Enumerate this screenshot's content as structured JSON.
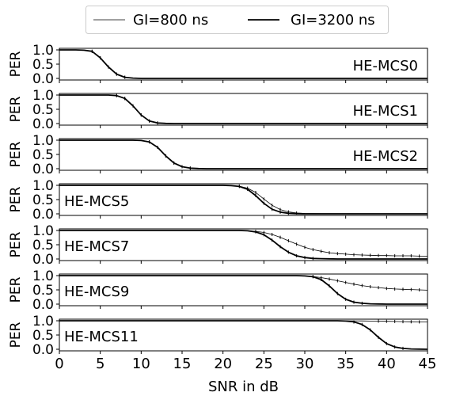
{
  "chart_data": {
    "type": "line",
    "xlabel": "SNR in dB",
    "x_ticks": [
      0,
      5,
      10,
      15,
      20,
      25,
      30,
      35,
      40,
      45
    ],
    "xlim": [
      0,
      45
    ],
    "y_ticks": [
      "1.0",
      "0.5",
      "0.0"
    ],
    "ylim": [
      0,
      1
    ],
    "legend": {
      "placement": "top-center",
      "entries": [
        {
          "label": "GI=800 ns",
          "style": "thin"
        },
        {
          "label": "GI=3200 ns",
          "style": "thick"
        }
      ]
    },
    "colors": {
      "line": "#000000",
      "axes": "#000000",
      "background": "#ffffff"
    },
    "panels": [
      {
        "label": "HE-MCS0",
        "ylabel": "PER",
        "label_position": "right",
        "series": [
          {
            "name": "GI=800 ns",
            "x": [
              0,
              2,
              3,
              4,
              5,
              6,
              7,
              8,
              9,
              10,
              45
            ],
            "y": [
              1,
              1,
              0.99,
              0.95,
              0.72,
              0.4,
              0.15,
              0.04,
              0.01,
              0,
              0
            ]
          },
          {
            "name": "GI=3200 ns",
            "x": [
              0,
              2,
              3,
              4,
              5,
              6,
              7,
              8,
              9,
              10,
              45
            ],
            "y": [
              1,
              1,
              0.99,
              0.95,
              0.72,
              0.4,
              0.15,
              0.04,
              0.01,
              0,
              0
            ]
          }
        ]
      },
      {
        "label": "HE-MCS1",
        "ylabel": "PER",
        "label_position": "right",
        "series": [
          {
            "name": "GI=800 ns",
            "x": [
              0,
              6,
              7,
              8,
              9,
              10,
              11,
              12,
              13,
              14,
              45
            ],
            "y": [
              1,
              1,
              0.98,
              0.88,
              0.62,
              0.3,
              0.09,
              0.02,
              0.005,
              0,
              0
            ]
          },
          {
            "name": "GI=3200 ns",
            "x": [
              0,
              6,
              7,
              8,
              9,
              10,
              11,
              12,
              13,
              14,
              45
            ],
            "y": [
              1,
              1,
              0.98,
              0.88,
              0.62,
              0.3,
              0.09,
              0.02,
              0.005,
              0,
              0
            ]
          }
        ]
      },
      {
        "label": "HE-MCS2",
        "ylabel": "PER",
        "label_position": "right",
        "series": [
          {
            "name": "GI=800 ns",
            "x": [
              0,
              9,
              10,
              11,
              12,
              13,
              14,
              15,
              16,
              17,
              18,
              45
            ],
            "y": [
              1,
              1,
              0.99,
              0.94,
              0.75,
              0.45,
              0.2,
              0.07,
              0.02,
              0.005,
              0,
              0
            ]
          },
          {
            "name": "GI=3200 ns",
            "x": [
              0,
              9,
              10,
              11,
              12,
              13,
              14,
              15,
              16,
              17,
              18,
              45
            ],
            "y": [
              1,
              1,
              0.99,
              0.94,
              0.75,
              0.45,
              0.2,
              0.07,
              0.02,
              0.005,
              0,
              0
            ]
          }
        ]
      },
      {
        "label": "HE-MCS5",
        "ylabel": "PER",
        "label_position": "left",
        "series": [
          {
            "name": "GI=800 ns",
            "x": [
              0,
              19,
              20,
              21,
              22,
              23,
              24,
              25,
              26,
              27,
              28,
              29,
              30,
              31,
              32,
              45
            ],
            "y": [
              1,
              1,
              1,
              0.99,
              0.97,
              0.9,
              0.75,
              0.52,
              0.3,
              0.15,
              0.07,
              0.03,
              0.015,
              0.008,
              0.005,
              0
            ]
          },
          {
            "name": "GI=3200 ns",
            "x": [
              0,
              19,
              20,
              21,
              22,
              23,
              24,
              25,
              26,
              27,
              28,
              29,
              30,
              45
            ],
            "y": [
              1,
              1,
              1,
              0.99,
              0.96,
              0.86,
              0.64,
              0.37,
              0.16,
              0.06,
              0.02,
              0.005,
              0,
              0
            ]
          }
        ]
      },
      {
        "label": "HE-MCS7",
        "ylabel": "PER",
        "label_position": "left",
        "series": [
          {
            "name": "GI=800 ns",
            "x": [
              0,
              22,
              23,
              24,
              25,
              26,
              27,
              28,
              29,
              30,
              31,
              32,
              33,
              34,
              35,
              36,
              37,
              38,
              39,
              40,
              41,
              42,
              43,
              44,
              45
            ],
            "y": [
              1,
              1,
              0.99,
              0.97,
              0.93,
              0.86,
              0.76,
              0.64,
              0.52,
              0.41,
              0.33,
              0.27,
              0.22,
              0.19,
              0.17,
              0.15,
              0.14,
              0.13,
              0.12,
              0.12,
              0.11,
              0.11,
              0.11,
              0.1,
              0.1
            ]
          },
          {
            "name": "GI=3200 ns",
            "x": [
              0,
              22,
              23,
              24,
              25,
              26,
              27,
              28,
              29,
              30,
              31,
              32,
              33,
              34,
              35,
              45
            ],
            "y": [
              1,
              1,
              0.99,
              0.95,
              0.85,
              0.66,
              0.43,
              0.24,
              0.11,
              0.05,
              0.02,
              0.01,
              0.005,
              0,
              0,
              0
            ]
          }
        ]
      },
      {
        "label": "HE-MCS9",
        "ylabel": "PER",
        "label_position": "left",
        "series": [
          {
            "name": "GI=800 ns",
            "x": [
              0,
              29,
              30,
              31,
              32,
              33,
              34,
              35,
              36,
              37,
              38,
              39,
              40,
              41,
              42,
              43,
              44,
              45
            ],
            "y": [
              1,
              1,
              0.99,
              0.97,
              0.93,
              0.88,
              0.82,
              0.76,
              0.7,
              0.65,
              0.61,
              0.58,
              0.55,
              0.53,
              0.52,
              0.51,
              0.5,
              0.49
            ]
          },
          {
            "name": "GI=3200 ns",
            "x": [
              0,
              29,
              30,
              31,
              32,
              33,
              34,
              35,
              36,
              37,
              38,
              39,
              40,
              41,
              45
            ],
            "y": [
              1,
              1,
              0.99,
              0.96,
              0.86,
              0.64,
              0.37,
              0.17,
              0.07,
              0.03,
              0.01,
              0.005,
              0,
              0,
              0
            ]
          }
        ]
      },
      {
        "label": "HE-MCS11",
        "ylabel": "PER",
        "label_position": "left",
        "series": [
          {
            "name": "GI=800 ns",
            "x": [
              0,
              33,
              34,
              35,
              36,
              37,
              38,
              39,
              40,
              41,
              42,
              43,
              44,
              45
            ],
            "y": [
              1,
              1,
              1,
              1,
              0.998,
              0.995,
              0.99,
              0.985,
              0.98,
              0.975,
              0.97,
              0.965,
              0.96,
              0.96
            ]
          },
          {
            "name": "GI=3200 ns",
            "x": [
              0,
              34,
              35,
              36,
              37,
              38,
              39,
              40,
              41,
              42,
              43,
              44,
              45
            ],
            "y": [
              1,
              1,
              0.99,
              0.96,
              0.87,
              0.68,
              0.42,
              0.2,
              0.08,
              0.03,
              0.01,
              0.005,
              0
            ]
          }
        ]
      }
    ]
  }
}
